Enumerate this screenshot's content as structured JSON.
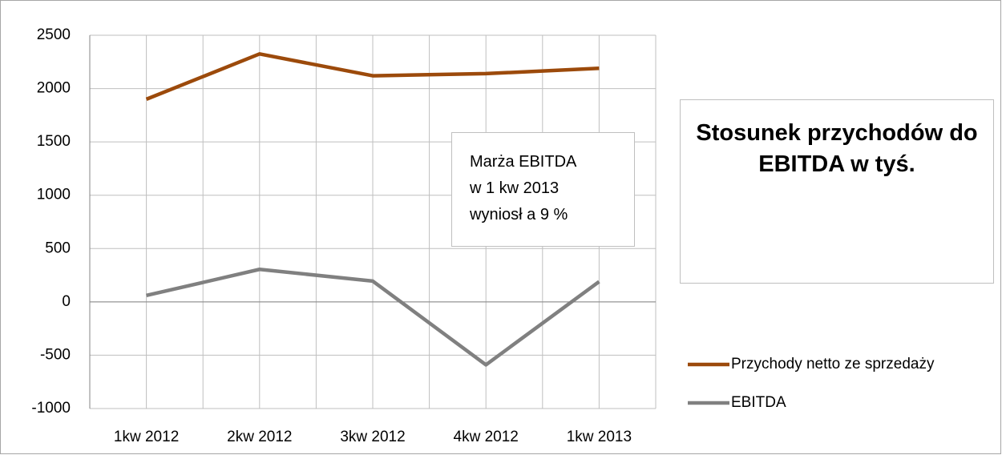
{
  "chart_data": {
    "type": "line",
    "title": "Stosunek przychodów do EBITDA w tyś.",
    "annotation": [
      "Marża EBITDA",
      "w 1 kw 2013",
      "wyniosł a 9 %"
    ],
    "categories": [
      "1kw 2012",
      "2kw 2012",
      "3kw 2012",
      "4kw 2012",
      "1kw 2013"
    ],
    "series": [
      {
        "name": "Przychody netto ze sprzedaży",
        "color": "#9c4a0b",
        "values": [
          1900,
          2325,
          2120,
          2140,
          2190
        ]
      },
      {
        "name": "EBITDA",
        "color": "#808080",
        "values": [
          60,
          305,
          195,
          -590,
          190
        ]
      }
    ],
    "ylim": [
      -1000,
      2500
    ],
    "yticks": [
      -1000,
      -500,
      0,
      500,
      1000,
      1500,
      2000,
      2500
    ],
    "grid": true,
    "legend": "right"
  }
}
